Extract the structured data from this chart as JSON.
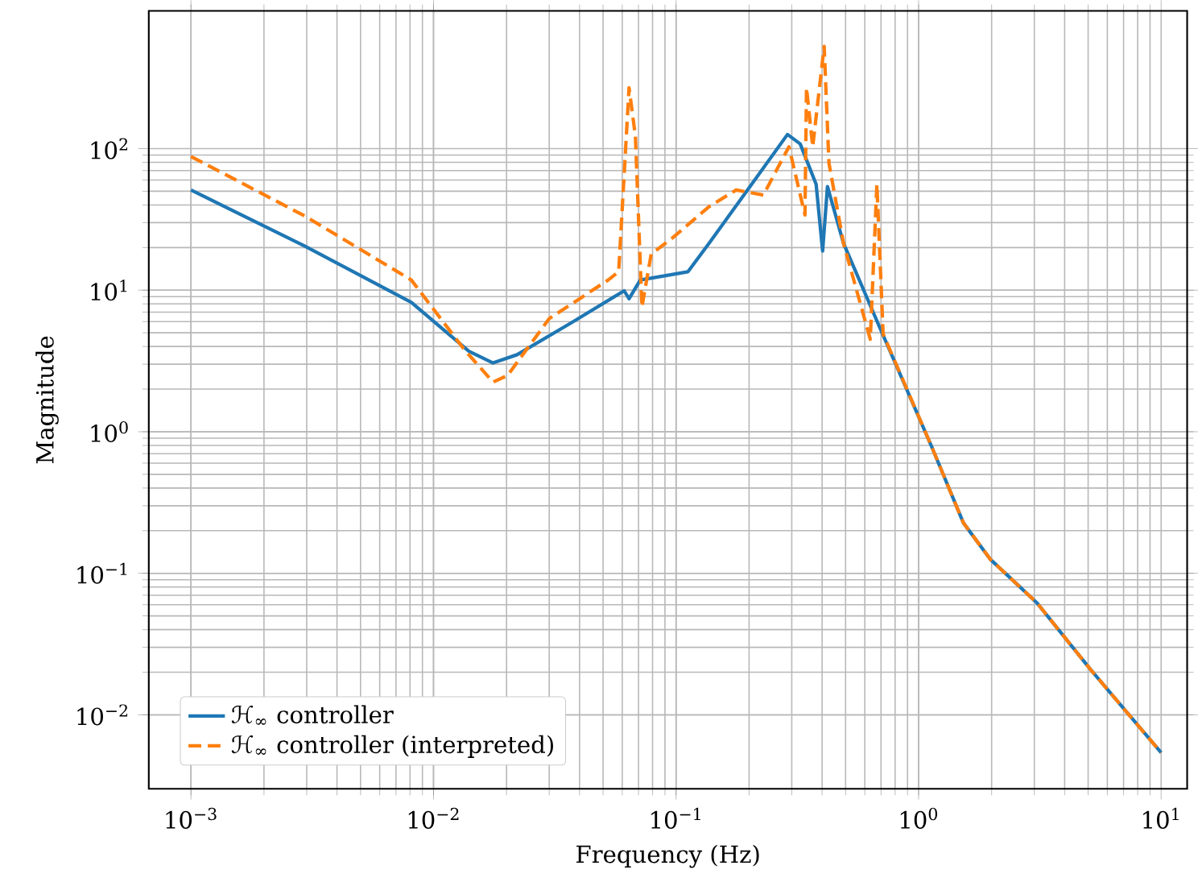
{
  "chart_data": {
    "type": "line",
    "xlabel": "Frequency (Hz)",
    "ylabel": "Magnitude",
    "log": "xy",
    "grid": true,
    "legend": "bottom left",
    "xlim": [
      0.00067,
      12.8
    ],
    "ylim": [
      0.003,
      940
    ],
    "xticks": [
      {
        "value": 0.001,
        "label": "10$^{−3}$"
      },
      {
        "value": 0.01,
        "label": "10$^{−2}$"
      },
      {
        "value": 0.1,
        "label": "10$^{−1}$"
      },
      {
        "value": 1,
        "label": "10$^{0}$"
      },
      {
        "value": 10,
        "label": "10$^{1}$"
      }
    ],
    "yticks": [
      {
        "value": 0.01,
        "label": "10$^{−2}$"
      },
      {
        "value": 0.1,
        "label": "10$^{−1}$"
      },
      {
        "value": 1,
        "label": "10$^{0}$"
      },
      {
        "value": 10,
        "label": "10$^{1}$"
      },
      {
        "value": 100,
        "label": "10$^{2}$"
      }
    ],
    "series": [
      {
        "name": "ℋ$_{∞}$ controller",
        "color": "#1f77b4",
        "line_style": "solid",
        "x": [
          0.001,
          0.00294,
          0.0081,
          0.014,
          0.0176,
          0.0221,
          0.0371,
          0.0611,
          0.064,
          0.0712,
          0.112,
          0.137,
          0.197,
          0.288,
          0.325,
          0.378,
          0.402,
          0.421,
          0.49,
          0.693,
          1.13,
          1.53,
          1.98,
          3.07,
          5.14,
          10
        ],
        "values": [
          51,
          20.5,
          8.2,
          3.7,
          3.06,
          3.5,
          5.9,
          9.9,
          8.7,
          11.8,
          13.5,
          21.5,
          51,
          126,
          108,
          56,
          18.9,
          54,
          21.5,
          5.4,
          0.79,
          0.227,
          0.125,
          0.062,
          0.0207,
          0.0054
        ]
      },
      {
        "name": "ℋ$_{∞}$ controller (interpreted)",
        "color": "#ff7f0e",
        "line_style": "dashed",
        "x": [
          0.001,
          0.00294,
          0.0081,
          0.0134,
          0.0176,
          0.0202,
          0.03,
          0.0525,
          0.058,
          0.064,
          0.068,
          0.0723,
          0.079,
          0.0964,
          0.137,
          0.177,
          0.229,
          0.292,
          0.34,
          0.345,
          0.366,
          0.408,
          0.427,
          0.49,
          0.632,
          0.673,
          0.714,
          1.13,
          1.53,
          1.98,
          3.07,
          5.14,
          10
        ],
        "values": [
          88,
          33.5,
          11.8,
          3.8,
          2.24,
          2.5,
          6.3,
          11.8,
          13.5,
          269,
          122,
          7.6,
          18,
          23.3,
          39,
          51,
          47,
          103,
          34,
          269,
          103,
          528,
          79,
          21.5,
          4.5,
          56,
          4.9,
          0.79,
          0.227,
          0.125,
          0.062,
          0.0207,
          0.0054
        ]
      }
    ]
  }
}
